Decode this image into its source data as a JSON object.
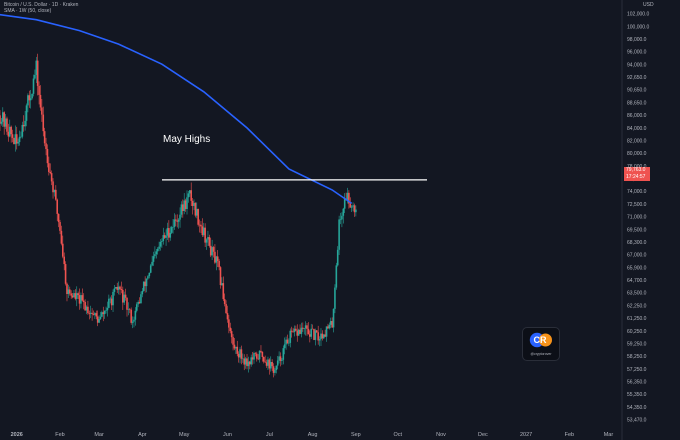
{
  "header": {
    "line1": "Bitcoin / U.S. Dollar · 1D · Kraken",
    "line2": "SMA · 1W (50, close)",
    "currency": "USD"
  },
  "annotation": {
    "label": "May Highs",
    "level": 83300
  },
  "price_tag": {
    "price": "79,763.0",
    "countdown": "17:24:57"
  },
  "logo": {
    "text": "CR",
    "handle": "@cryptorover"
  },
  "colors": {
    "background": "#131722",
    "up": "#26a69a",
    "down": "#ef5350",
    "sma": "#2962ff",
    "line": "#ffffff",
    "text": "#b2b5be"
  },
  "chart_data": {
    "type": "line",
    "title": "",
    "xlabel": "",
    "ylabel": "",
    "ylim": [
      53470,
      103800
    ],
    "y_ticks": [
      "102,000.0",
      "100,000.0",
      "98,000.0",
      "96,000.0",
      "94,000.0",
      "92,650.0",
      "90,650.0",
      "88,650.0",
      "86,000.0",
      "84,000.0",
      "82,000.0",
      "80,000.0",
      "78,000.0",
      "76,000.0",
      "74,000.0",
      "72,500.0",
      "71,000.0",
      "69,500.0",
      "68,300.0",
      "67,000.0",
      "65,900.0",
      "64,700.0",
      "63,500.0",
      "62,250.0",
      "61,250.0",
      "60,250.0",
      "59,250.0",
      "58,250.0",
      "57,250.0",
      "56,350.0",
      "55,350.0",
      "54,350.0",
      "53,470.0"
    ],
    "x_ticks": [
      "2026",
      "Feb",
      "Mar",
      "Apr",
      "May",
      "Jun",
      "Jul",
      "Aug",
      "Sep",
      "Oct",
      "Nov",
      "Dec",
      "2027",
      "Feb",
      "Mar"
    ],
    "grid": false,
    "series": [
      {
        "name": "",
        "kind": "close",
        "x": [
          "2025-12-20",
          "2026-01-01",
          "2026-01-10",
          "2026-01-15",
          "2026-01-20",
          "2026-02-01",
          "2026-02-06",
          "2026-02-15",
          "2026-03-01",
          "2026-03-15",
          "2026-03-25",
          "2026-04-05",
          "2026-04-15",
          "2026-04-25",
          "2026-05-05",
          "2026-05-15",
          "2026-05-25",
          "2026-06-05",
          "2026-06-15",
          "2026-06-25",
          "2026-07-05",
          "2026-07-15",
          "2026-07-25",
          "2026-08-05",
          "2026-08-15",
          "2026-08-20",
          "2026-08-25",
          "2026-09-01"
        ],
        "values": [
          91000,
          87500,
          93000,
          96500,
          89000,
          77500,
          70000,
          69000,
          66500,
          70500,
          66500,
          72000,
          76000,
          78500,
          81500,
          77000,
          73000,
          63500,
          61500,
          62500,
          60500,
          64500,
          65500,
          64500,
          66000,
          78000,
          81500,
          79763
        ]
      },
      {
        "name": "",
        "kind": "sma",
        "x": [
          "2025-12-20",
          "2026-01-15",
          "2026-02-15",
          "2026-03-15",
          "2026-04-15",
          "2026-05-15",
          "2026-06-15",
          "2026-07-15",
          "2026-08-15",
          "2026-08-29"
        ],
        "values": [
          103000,
          102400,
          101100,
          99500,
          97100,
          93800,
          89500,
          84600,
          82100,
          80500
        ]
      }
    ]
  }
}
